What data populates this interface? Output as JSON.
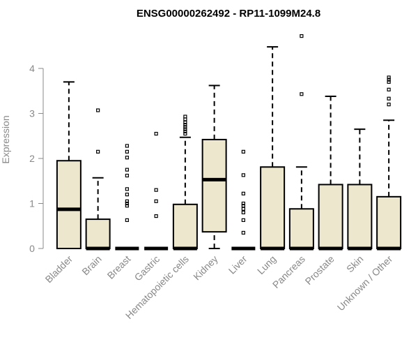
{
  "chart_data": {
    "type": "boxplot",
    "title": "ENSG00000262492 - RP11-1099M24.8",
    "xlabel": "",
    "ylabel": "Expression",
    "ylim": [
      0,
      4.9
    ],
    "yticks": [
      0,
      1,
      2,
      3,
      4
    ],
    "box_fill": "#ede7cd",
    "categories": [
      "Bladder",
      "Brain",
      "Breast",
      "Gastric",
      "Hematopoietic cells",
      "Kidney",
      "Liver",
      "Lung",
      "Pancreas",
      "Prostate",
      "Skin",
      "Unknown / Other"
    ],
    "boxes": [
      {
        "category": "Bladder",
        "whisker_low": 0,
        "q1": 0,
        "median": 0.87,
        "q3": 1.95,
        "whisker_high": 3.7,
        "outliers": []
      },
      {
        "category": "Brain",
        "whisker_low": 0,
        "q1": 0,
        "median": 0,
        "q3": 0.65,
        "whisker_high": 1.57,
        "outliers": [
          2.15,
          3.07
        ]
      },
      {
        "category": "Breast",
        "whisker_low": 0,
        "q1": 0,
        "median": 0,
        "q3": 0,
        "whisker_high": 0,
        "outliers": [
          0.63,
          0.95,
          1.0,
          1.05,
          1.2,
          1.32,
          1.62,
          1.75,
          2.02,
          2.15,
          2.28
        ]
      },
      {
        "category": "Gastric",
        "whisker_low": 0,
        "q1": 0,
        "median": 0,
        "q3": 0,
        "whisker_high": 0,
        "outliers": [
          0.72,
          1.05,
          1.3,
          2.55
        ]
      },
      {
        "category": "Hematopoietic cells",
        "whisker_low": 0,
        "q1": 0,
        "median": 0,
        "q3": 0.98,
        "whisker_high": 2.47,
        "outliers": [
          2.55,
          2.6,
          2.65,
          2.7,
          2.75,
          2.8,
          2.87,
          2.93
        ]
      },
      {
        "category": "Kidney",
        "whisker_low": 0,
        "q1": 0.37,
        "median": 1.53,
        "q3": 2.42,
        "whisker_high": 3.62,
        "outliers": []
      },
      {
        "category": "Liver",
        "whisker_low": 0,
        "q1": 0,
        "median": 0,
        "q3": 0,
        "whisker_high": 0,
        "outliers": [
          0.35,
          0.63,
          0.8,
          0.88,
          0.95,
          1.0,
          1.22,
          1.63,
          2.15
        ]
      },
      {
        "category": "Lung",
        "whisker_low": 0,
        "q1": 0,
        "median": 0,
        "q3": 1.81,
        "whisker_high": 4.48,
        "outliers": []
      },
      {
        "category": "Pancreas",
        "whisker_low": 0,
        "q1": 0,
        "median": 0,
        "q3": 0.88,
        "whisker_high": 1.81,
        "outliers": [
          3.43,
          4.72
        ]
      },
      {
        "category": "Prostate",
        "whisker_low": 0,
        "q1": 0,
        "median": 0,
        "q3": 1.42,
        "whisker_high": 3.38,
        "outliers": []
      },
      {
        "category": "Skin",
        "whisker_low": 0,
        "q1": 0,
        "median": 0,
        "q3": 1.42,
        "whisker_high": 2.65,
        "outliers": []
      },
      {
        "category": "Unknown / Other",
        "whisker_low": 0,
        "q1": 0,
        "median": 0,
        "q3": 1.15,
        "whisker_high": 2.85,
        "outliers": [
          3.2,
          3.33,
          3.53,
          3.7,
          3.75,
          3.8
        ]
      }
    ]
  }
}
